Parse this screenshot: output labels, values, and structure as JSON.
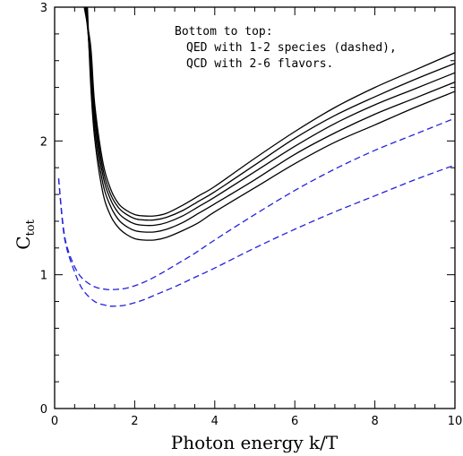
{
  "chart_data": {
    "type": "line",
    "title": "",
    "xlabel": "Photon energy k/T",
    "ylabel": "C",
    "ylabel_subscript": "tot",
    "xlim": [
      0,
      10
    ],
    "ylim": [
      0,
      3
    ],
    "xticks": [
      "0",
      "2",
      "4",
      "6",
      "8",
      "10"
    ],
    "yticks": [
      "0",
      "1",
      "2",
      "3"
    ],
    "annotation": [
      "Bottom to top:",
      "QED with 1-2 species (dashed),",
      "QCD with 2-6 flavors."
    ],
    "colors": {
      "qed": "#2222dd",
      "qcd": "#000000"
    },
    "series": [
      {
        "style": "dashed",
        "group": "QED",
        "x": [
          0.1,
          0.2,
          0.3,
          0.5,
          0.7,
          1.0,
          1.3,
          1.5,
          1.8,
          2.2,
          2.6,
          3.0,
          3.5,
          4.0,
          5.0,
          6.0,
          7.0,
          8.0,
          9.0,
          10.0
        ],
        "y": [
          1.72,
          1.38,
          1.2,
          1.02,
          0.89,
          0.8,
          0.77,
          0.765,
          0.775,
          0.81,
          0.86,
          0.91,
          0.98,
          1.05,
          1.2,
          1.34,
          1.47,
          1.59,
          1.71,
          1.82
        ]
      },
      {
        "style": "dashed",
        "group": "QED",
        "x": [
          0.1,
          0.2,
          0.3,
          0.5,
          0.7,
          1.0,
          1.3,
          1.5,
          1.8,
          2.2,
          2.6,
          3.0,
          3.5,
          4.0,
          5.0,
          6.0,
          7.0,
          8.0,
          9.0,
          10.0
        ],
        "y": [
          1.72,
          1.4,
          1.22,
          1.06,
          0.97,
          0.91,
          0.89,
          0.89,
          0.9,
          0.94,
          1.0,
          1.07,
          1.16,
          1.26,
          1.45,
          1.63,
          1.79,
          1.93,
          2.05,
          2.17
        ]
      },
      {
        "style": "solid",
        "group": "QCD",
        "x": [
          0.82,
          0.9,
          1.0,
          1.2,
          1.4,
          1.6,
          1.8,
          2.0,
          2.2,
          2.5,
          2.8,
          3.2,
          3.6,
          4.0,
          5.0,
          6.0,
          7.0,
          8.0,
          9.0,
          10.0
        ],
        "y": [
          3.0,
          2.43,
          2.02,
          1.62,
          1.44,
          1.35,
          1.3,
          1.27,
          1.26,
          1.26,
          1.28,
          1.33,
          1.39,
          1.47,
          1.65,
          1.83,
          1.99,
          2.12,
          2.25,
          2.37
        ]
      },
      {
        "style": "solid",
        "group": "QCD",
        "x": [
          0.8,
          0.9,
          1.0,
          1.2,
          1.4,
          1.6,
          1.8,
          2.0,
          2.2,
          2.5,
          2.8,
          3.2,
          3.6,
          4.0,
          5.0,
          6.0,
          7.0,
          8.0,
          9.0,
          10.0
        ],
        "y": [
          3.0,
          2.5,
          2.09,
          1.69,
          1.51,
          1.41,
          1.36,
          1.33,
          1.32,
          1.32,
          1.34,
          1.39,
          1.46,
          1.53,
          1.71,
          1.9,
          2.06,
          2.2,
          2.32,
          2.44
        ]
      },
      {
        "style": "solid",
        "group": "QCD",
        "x": [
          0.78,
          0.9,
          1.0,
          1.2,
          1.4,
          1.6,
          1.8,
          2.0,
          2.2,
          2.5,
          2.8,
          3.2,
          3.6,
          4.0,
          5.0,
          6.0,
          7.0,
          8.0,
          9.0,
          10.0
        ],
        "y": [
          3.0,
          2.57,
          2.16,
          1.75,
          1.56,
          1.46,
          1.41,
          1.38,
          1.37,
          1.37,
          1.39,
          1.44,
          1.51,
          1.58,
          1.77,
          1.96,
          2.13,
          2.27,
          2.39,
          2.51
        ]
      },
      {
        "style": "solid",
        "group": "QCD",
        "x": [
          0.76,
          0.9,
          1.0,
          1.2,
          1.4,
          1.6,
          1.8,
          2.0,
          2.2,
          2.5,
          2.8,
          3.2,
          3.6,
          4.0,
          5.0,
          6.0,
          7.0,
          8.0,
          9.0,
          10.0
        ],
        "y": [
          3.0,
          2.64,
          2.22,
          1.8,
          1.6,
          1.5,
          1.45,
          1.42,
          1.41,
          1.41,
          1.43,
          1.48,
          1.55,
          1.62,
          1.82,
          2.02,
          2.19,
          2.33,
          2.46,
          2.58
        ]
      },
      {
        "style": "solid",
        "group": "QCD",
        "x": [
          0.74,
          0.9,
          1.0,
          1.2,
          1.4,
          1.6,
          1.8,
          2.0,
          2.2,
          2.5,
          2.8,
          3.2,
          3.6,
          4.0,
          5.0,
          6.0,
          7.0,
          8.0,
          9.0,
          10.0
        ],
        "y": [
          3.0,
          2.71,
          2.28,
          1.85,
          1.64,
          1.53,
          1.48,
          1.45,
          1.44,
          1.44,
          1.46,
          1.52,
          1.59,
          1.66,
          1.87,
          2.07,
          2.25,
          2.4,
          2.53,
          2.66
        ]
      }
    ]
  }
}
